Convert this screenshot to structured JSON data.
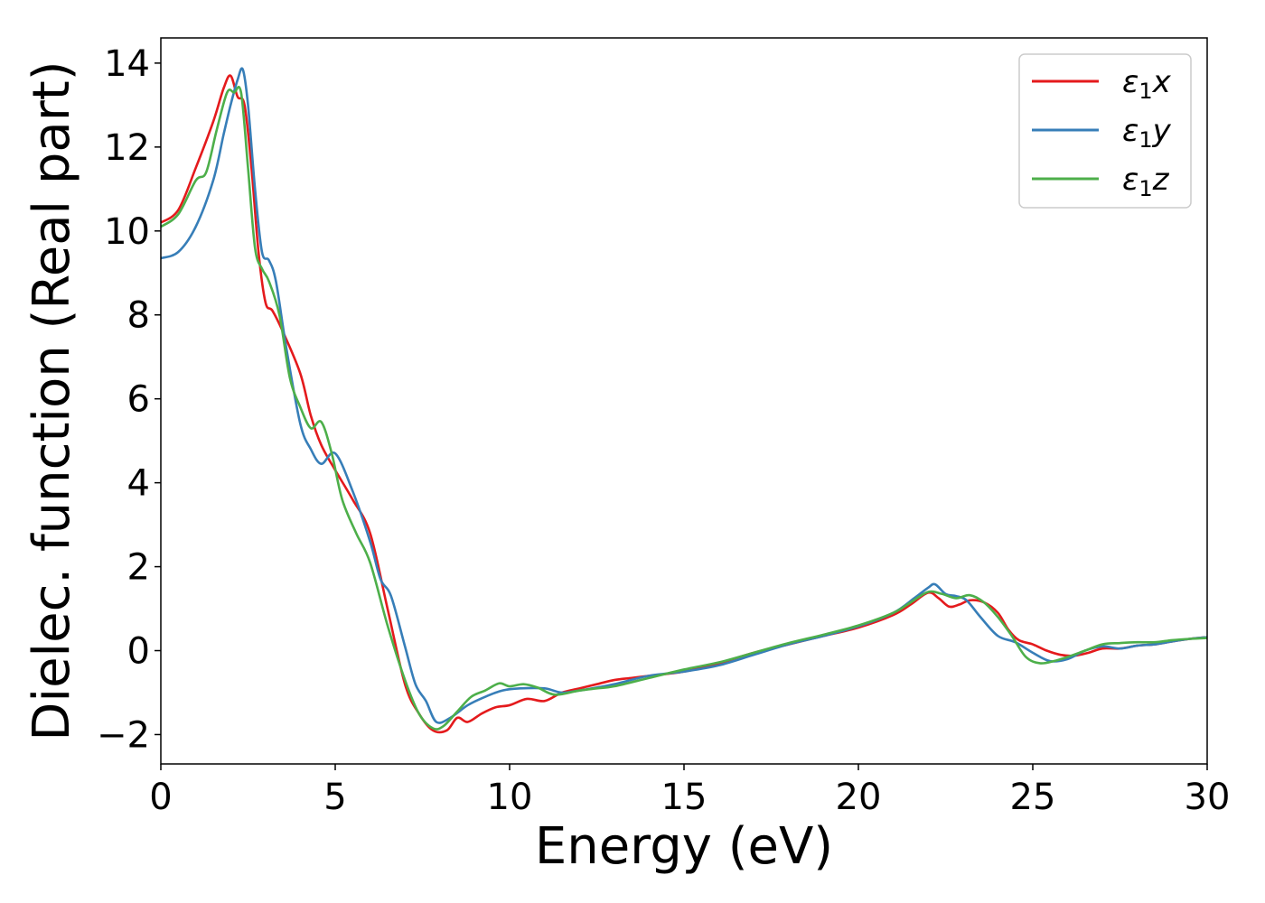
{
  "chart_data": {
    "type": "line",
    "title": "",
    "xlabel": "Energy (eV)",
    "ylabel": "Dielec. function (Real part)",
    "xlim": [
      0,
      30
    ],
    "ylim": [
      -2.7,
      14.6
    ],
    "xticks": [
      0,
      5,
      10,
      15,
      20,
      25,
      30
    ],
    "xtick_labels": [
      "0",
      "5",
      "10",
      "15",
      "20",
      "25",
      "30"
    ],
    "yticks": [
      -2,
      0,
      2,
      4,
      6,
      8,
      10,
      12,
      14
    ],
    "ytick_labels": [
      "−2",
      "0",
      "2",
      "4",
      "6",
      "8",
      "10",
      "12",
      "14"
    ],
    "grid": false,
    "legend_position": "top-right",
    "series": [
      {
        "name": "ε₁x",
        "legend_base": "ε",
        "legend_sub": "1",
        "legend_suffix": "x",
        "color": "#e41a1c",
        "x": [
          0,
          0.5,
          1.0,
          1.5,
          1.8,
          2.0,
          2.2,
          2.4,
          2.6,
          2.8,
          3.0,
          3.2,
          3.5,
          4.0,
          4.3,
          4.6,
          5.0,
          5.5,
          6.0,
          6.5,
          7.0,
          7.4,
          7.8,
          8.2,
          8.5,
          8.8,
          9.2,
          9.6,
          10.0,
          10.5,
          11.0,
          11.5,
          12.0,
          12.5,
          13.0,
          13.5,
          14.0,
          15.0,
          16.0,
          17.0,
          18.0,
          19.0,
          20.0,
          21.0,
          21.5,
          22.0,
          22.3,
          22.6,
          22.9,
          23.2,
          23.6,
          24.0,
          24.3,
          24.6,
          25.0,
          25.4,
          25.8,
          26.2,
          26.6,
          27.0,
          27.5,
          28.0,
          28.5,
          29.0,
          29.5,
          30.0
        ],
        "y": [
          10.2,
          10.5,
          11.5,
          12.6,
          13.4,
          13.7,
          13.2,
          13.0,
          11.5,
          9.5,
          8.3,
          8.1,
          7.6,
          6.6,
          5.6,
          4.9,
          4.3,
          3.6,
          2.8,
          1.0,
          -0.8,
          -1.5,
          -1.9,
          -1.9,
          -1.6,
          -1.7,
          -1.5,
          -1.35,
          -1.3,
          -1.15,
          -1.2,
          -1.0,
          -0.9,
          -0.8,
          -0.7,
          -0.65,
          -0.6,
          -0.5,
          -0.3,
          -0.05,
          0.15,
          0.35,
          0.55,
          0.85,
          1.1,
          1.38,
          1.25,
          1.05,
          1.1,
          1.2,
          1.15,
          0.9,
          0.5,
          0.25,
          0.15,
          0.0,
          -0.1,
          -0.12,
          -0.05,
          0.05,
          0.05,
          0.12,
          0.15,
          0.22,
          0.28,
          0.32
        ]
      },
      {
        "name": "ε₁y",
        "legend_base": "ε",
        "legend_sub": "1",
        "legend_suffix": "y",
        "color": "#377eb8",
        "x": [
          0,
          0.5,
          1.0,
          1.5,
          1.8,
          2.0,
          2.2,
          2.35,
          2.5,
          2.7,
          2.9,
          3.1,
          3.3,
          3.6,
          4.0,
          4.3,
          4.6,
          5.0,
          5.5,
          6.0,
          6.3,
          6.6,
          7.0,
          7.3,
          7.6,
          7.9,
          8.3,
          8.8,
          9.3,
          9.8,
          10.3,
          11.0,
          11.5,
          12.0,
          12.5,
          13.0,
          14.0,
          15.0,
          16.0,
          17.0,
          18.0,
          19.0,
          20.0,
          21.0,
          21.6,
          22.0,
          22.2,
          22.5,
          22.8,
          23.1,
          23.5,
          24.0,
          24.5,
          25.0,
          25.5,
          26.0,
          26.5,
          27.0,
          27.5,
          28.0,
          28.5,
          29.0,
          29.5,
          30.0
        ],
        "y": [
          9.35,
          9.5,
          10.1,
          11.2,
          12.3,
          13.0,
          13.6,
          13.85,
          13.0,
          11.0,
          9.5,
          9.3,
          8.8,
          7.2,
          5.4,
          4.8,
          4.45,
          4.7,
          3.8,
          2.6,
          1.7,
          1.3,
          0.1,
          -0.8,
          -1.2,
          -1.7,
          -1.6,
          -1.3,
          -1.1,
          -0.95,
          -0.9,
          -0.9,
          -1.0,
          -0.95,
          -0.88,
          -0.8,
          -0.6,
          -0.5,
          -0.35,
          -0.1,
          0.15,
          0.35,
          0.58,
          0.9,
          1.25,
          1.5,
          1.58,
          1.35,
          1.3,
          1.2,
          0.8,
          0.35,
          0.2,
          -0.05,
          -0.25,
          -0.2,
          0.0,
          0.1,
          0.05,
          0.12,
          0.15,
          0.22,
          0.28,
          0.32
        ]
      },
      {
        "name": "ε₁z",
        "legend_base": "ε",
        "legend_sub": "1",
        "legend_suffix": "z",
        "color": "#4daf4a",
        "x": [
          0,
          0.5,
          1.0,
          1.3,
          1.6,
          1.9,
          2.1,
          2.3,
          2.5,
          2.7,
          2.9,
          3.1,
          3.4,
          3.7,
          4.0,
          4.3,
          4.6,
          4.9,
          5.2,
          5.6,
          6.0,
          6.5,
          7.0,
          7.4,
          7.8,
          8.1,
          8.5,
          8.9,
          9.3,
          9.7,
          10.0,
          10.4,
          10.8,
          11.3,
          12.0,
          12.5,
          13.0,
          14.0,
          15.0,
          16.0,
          17.0,
          18.0,
          19.0,
          20.0,
          21.0,
          21.5,
          22.0,
          22.4,
          22.8,
          23.2,
          23.6,
          24.0,
          24.4,
          24.8,
          25.2,
          25.6,
          26.0,
          26.5,
          27.0,
          27.5,
          28.0,
          28.5,
          29.0,
          29.5,
          30.0
        ],
        "y": [
          10.1,
          10.4,
          11.2,
          11.4,
          12.4,
          13.3,
          13.3,
          13.3,
          11.5,
          9.6,
          9.1,
          8.8,
          8.0,
          6.5,
          5.8,
          5.3,
          5.45,
          4.7,
          3.6,
          2.8,
          2.1,
          0.6,
          -0.7,
          -1.5,
          -1.85,
          -1.8,
          -1.45,
          -1.1,
          -0.95,
          -0.78,
          -0.85,
          -0.8,
          -0.88,
          -1.05,
          -0.95,
          -0.9,
          -0.85,
          -0.65,
          -0.45,
          -0.28,
          -0.05,
          0.18,
          0.38,
          0.6,
          0.9,
          1.15,
          1.4,
          1.35,
          1.25,
          1.32,
          1.15,
          0.8,
          0.35,
          -0.15,
          -0.3,
          -0.25,
          -0.15,
          0.0,
          0.15,
          0.18,
          0.2,
          0.2,
          0.25,
          0.28,
          0.3
        ]
      }
    ]
  }
}
